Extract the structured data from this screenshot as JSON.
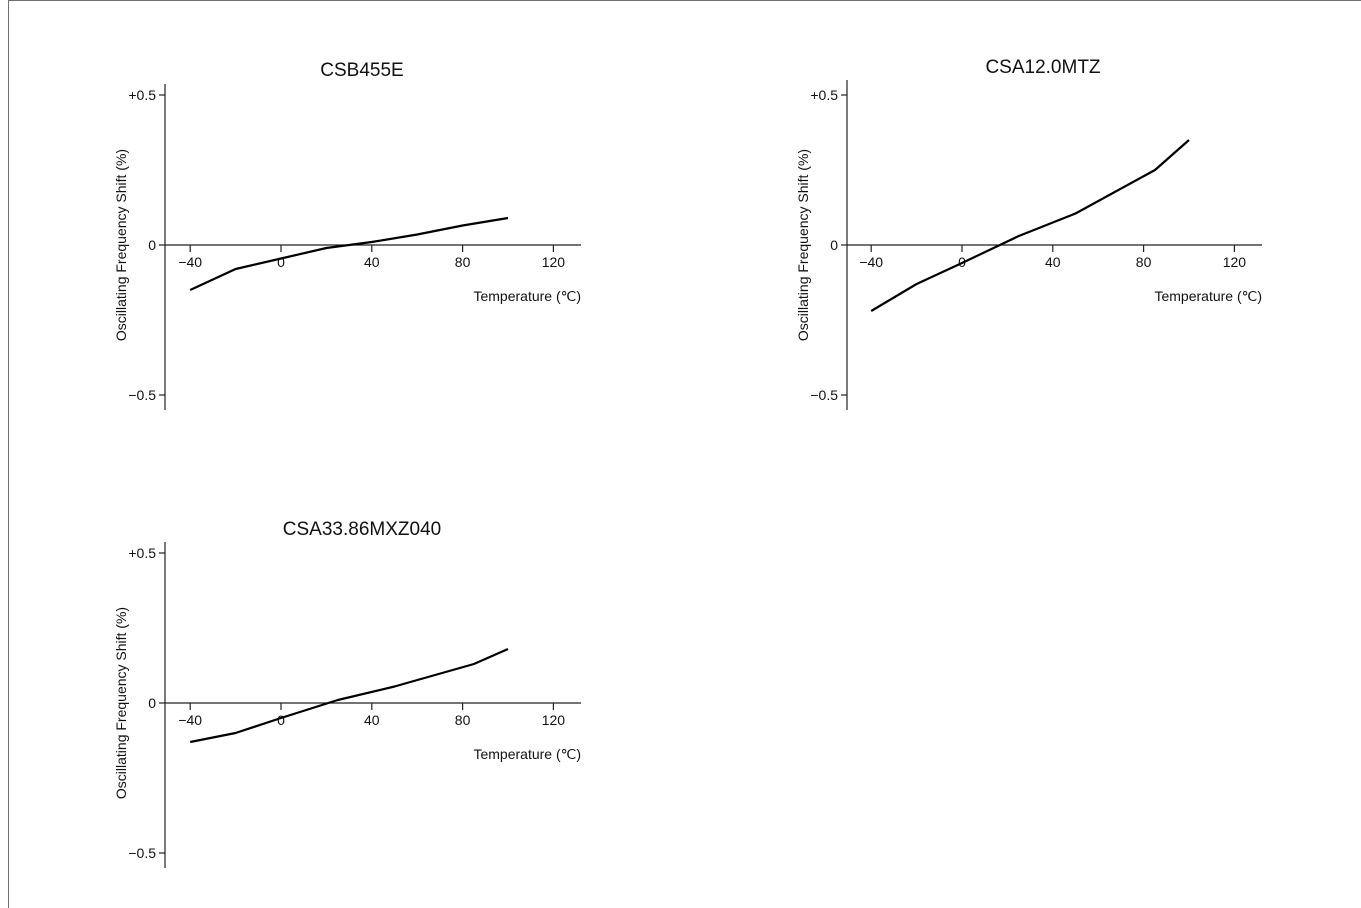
{
  "chart_data": [
    {
      "type": "line",
      "title": "CSB455E",
      "xlabel": "Temperature (℃)",
      "ylabel": "Oscillating Frequency Shift (%)",
      "xlim": [
        -50,
        130
      ],
      "ylim": [
        -0.5,
        0.5
      ],
      "x_ticks": [
        "−40",
        "0",
        "40",
        "80",
        "120"
      ],
      "y_ticks": [
        "+0.5",
        "0",
        "−0.5"
      ],
      "grid": false,
      "series": [
        {
          "x": [
            -40,
            -20,
            0,
            20,
            40,
            60,
            80,
            100
          ],
          "y": [
            -0.15,
            -0.08,
            -0.045,
            -0.01,
            0.01,
            0.035,
            0.065,
            0.09
          ]
        }
      ]
    },
    {
      "type": "line",
      "title": "CSA12.0MTZ",
      "xlabel": "Temperature (℃)",
      "ylabel": "Oscillating Frequency Shift (%)",
      "xlim": [
        -50,
        130
      ],
      "ylim": [
        -0.5,
        0.5
      ],
      "x_ticks": [
        "−40",
        "0",
        "40",
        "80",
        "120"
      ],
      "y_ticks": [
        "+0.5",
        "0",
        "−0.5"
      ],
      "grid": false,
      "series": [
        {
          "x": [
            -40,
            -20,
            0,
            25,
            50,
            85,
            100
          ],
          "y": [
            -0.22,
            -0.13,
            -0.06,
            0.03,
            0.105,
            0.25,
            0.35
          ]
        }
      ]
    },
    {
      "type": "line",
      "title": "CSA33.86MXZ040",
      "xlabel": "Temperature (℃)",
      "ylabel": "Oscillating Frequency Shift (%)",
      "xlim": [
        -50,
        130
      ],
      "ylim": [
        -0.5,
        0.5
      ],
      "x_ticks": [
        "−40",
        "0",
        "40",
        "80",
        "120"
      ],
      "y_ticks": [
        "+0.5",
        "0",
        "−0.5"
      ],
      "grid": false,
      "series": [
        {
          "x": [
            -40,
            -20,
            0,
            25,
            50,
            85,
            100
          ],
          "y": [
            -0.13,
            -0.1,
            -0.05,
            0.01,
            0.055,
            0.13,
            0.18
          ]
        }
      ]
    }
  ]
}
